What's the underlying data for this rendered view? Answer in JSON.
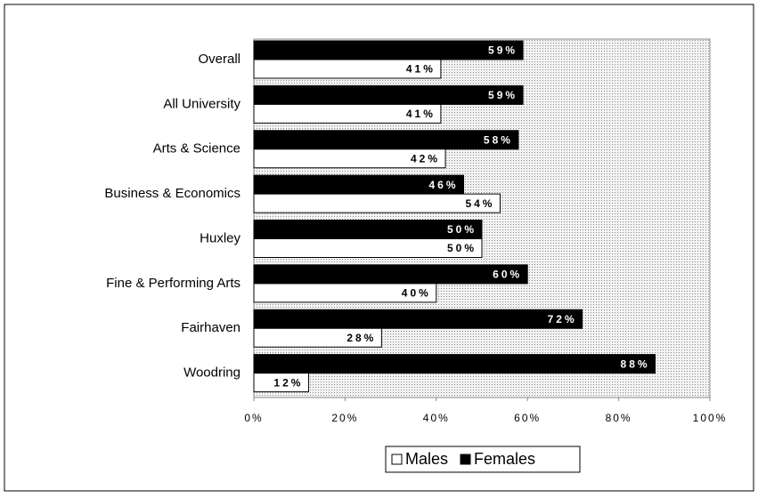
{
  "chart_data": {
    "type": "hbar",
    "categories": [
      "Overall",
      "All University",
      "Arts & Science",
      "Business & Economics",
      "Huxley",
      "Fine & Performing Arts",
      "Fairhaven",
      "Woodring"
    ],
    "series": [
      {
        "name": "Males",
        "color": "#ffffff",
        "values": [
          41,
          41,
          42,
          54,
          50,
          40,
          28,
          12
        ],
        "value_labels": [
          "41%",
          "41%",
          "42%",
          "54%",
          "50%",
          "40%",
          "28%",
          "12%"
        ]
      },
      {
        "name": "Females",
        "color": "#000000",
        "values": [
          59,
          59,
          58,
          46,
          50,
          60,
          72,
          88
        ],
        "value_labels": [
          "59%",
          "59%",
          "58%",
          "46%",
          "50%",
          "60%",
          "72%",
          "88%"
        ]
      }
    ],
    "xlim": [
      0,
      100
    ],
    "xticks": [
      {
        "value": 0,
        "label": "0%"
      },
      {
        "value": 20,
        "label": "20%"
      },
      {
        "value": 40,
        "label": "40%"
      },
      {
        "value": 60,
        "label": "60%"
      },
      {
        "value": 80,
        "label": "80%"
      },
      {
        "value": 100,
        "label": "100%"
      }
    ],
    "legend": "bottom"
  }
}
